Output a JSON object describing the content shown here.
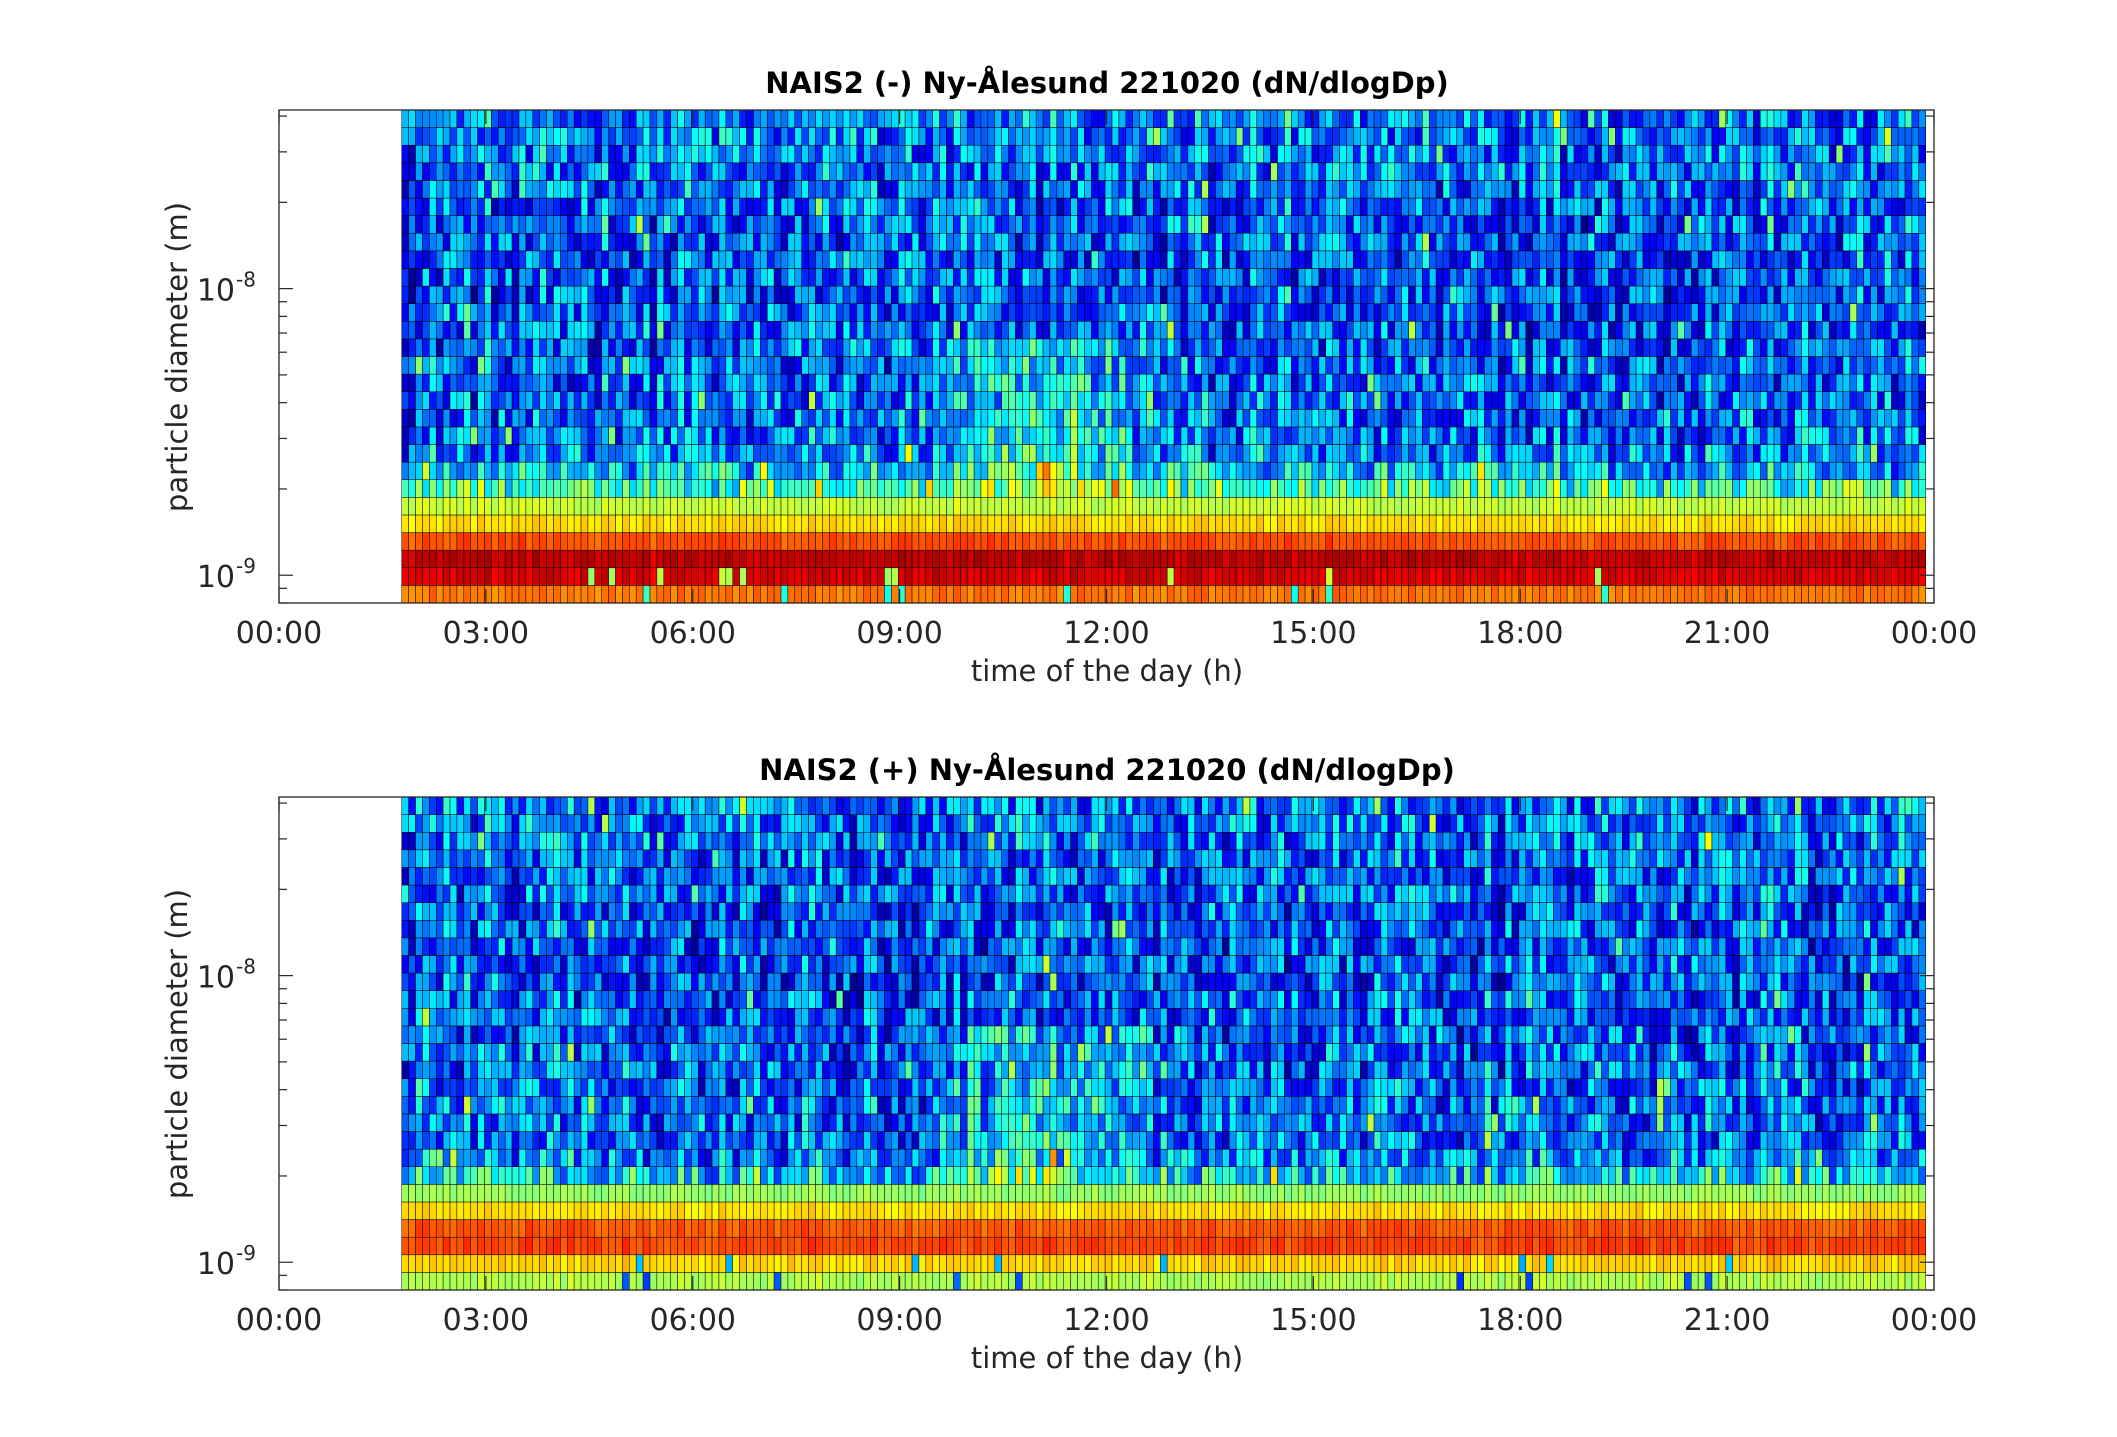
{
  "chart_data": [
    {
      "type": "heatmap",
      "title": "NAIS2 (-) Ny-Ålesund 221020 (dN/dlogDp)",
      "xlabel": "time of the day (h)",
      "ylabel": "particle diameter (m)",
      "xlim": [
        "00:00",
        "24:00"
      ],
      "x_ticks": [
        "00:00",
        "03:00",
        "06:00",
        "09:00",
        "12:00",
        "15:00",
        "18:00",
        "21:00",
        "00:00"
      ],
      "y_scale": "log",
      "ylim": [
        8e-10,
        4.2e-08
      ],
      "y_ticks": [
        {
          "base": "10",
          "exp": "-9",
          "value": 1e-09
        },
        {
          "base": "10",
          "exp": "-8",
          "value": 1e-08
        }
      ],
      "data_start_hour": 1.78,
      "data_end_hour": 23.9,
      "colormap": "jet",
      "profile_by_diameter": [
        {
          "dp": 9.1e-10,
          "level": 0.76
        },
        {
          "dp": 1e-09,
          "level": 0.93
        },
        {
          "dp": 1.1e-09,
          "level": 0.95
        },
        {
          "dp": 1.2e-09,
          "level": 0.91
        },
        {
          "dp": 1.35e-09,
          "level": 0.76
        },
        {
          "dp": 1.5e-09,
          "level": 0.66
        },
        {
          "dp": 1.7e-09,
          "level": 0.59
        },
        {
          "dp": 1.9e-09,
          "level": 0.5
        },
        {
          "dp": 2.2e-09,
          "level": 0.34
        },
        {
          "dp": 2.5e-09,
          "level": 0.28
        },
        {
          "dp": 3e-09,
          "level": 0.25
        },
        {
          "dp": 4e-09,
          "level": 0.23
        },
        {
          "dp": 6e-09,
          "level": 0.22
        },
        {
          "dp": 1e-08,
          "level": 0.21
        },
        {
          "dp": 1.6e-08,
          "level": 0.22
        },
        {
          "dp": 2.5e-08,
          "level": 0.24
        },
        {
          "dp": 4.2e-08,
          "level": 0.26
        }
      ],
      "event_hours": [
        9.5,
        13.8
      ],
      "event_peak_hour": 11.2
    },
    {
      "type": "heatmap",
      "title": "NAIS2 (+) Ny-Ålesund 221020 (dN/dlogDp)",
      "xlabel": "time of the day (h)",
      "ylabel": "particle diameter (m)",
      "xlim": [
        "00:00",
        "24:00"
      ],
      "x_ticks": [
        "00:00",
        "03:00",
        "06:00",
        "09:00",
        "12:00",
        "15:00",
        "18:00",
        "21:00",
        "00:00"
      ],
      "y_scale": "log",
      "ylim": [
        8e-10,
        4.2e-08
      ],
      "y_ticks": [
        {
          "base": "10",
          "exp": "-9",
          "value": 1e-09
        },
        {
          "base": "10",
          "exp": "-8",
          "value": 1e-08
        }
      ],
      "data_start_hour": 1.78,
      "data_end_hour": 23.9,
      "colormap": "jet",
      "profile_by_diameter": [
        {
          "dp": 9.1e-10,
          "level": 0.55
        },
        {
          "dp": 1e-09,
          "level": 0.68
        },
        {
          "dp": 1.1e-09,
          "level": 0.8
        },
        {
          "dp": 1.2e-09,
          "level": 0.82
        },
        {
          "dp": 1.35e-09,
          "level": 0.78
        },
        {
          "dp": 1.5e-09,
          "level": 0.66
        },
        {
          "dp": 1.7e-09,
          "level": 0.56
        },
        {
          "dp": 1.9e-09,
          "level": 0.4
        },
        {
          "dp": 2.2e-09,
          "level": 0.27
        },
        {
          "dp": 2.5e-09,
          "level": 0.25
        },
        {
          "dp": 3e-09,
          "level": 0.24
        },
        {
          "dp": 4e-09,
          "level": 0.23
        },
        {
          "dp": 6e-09,
          "level": 0.22
        },
        {
          "dp": 1e-08,
          "level": 0.21
        },
        {
          "dp": 1.6e-08,
          "level": 0.22
        },
        {
          "dp": 2.5e-08,
          "level": 0.24
        },
        {
          "dp": 4.2e-08,
          "level": 0.26
        }
      ],
      "event_hours": [
        9.5,
        13.8
      ],
      "event_peak_hour": 11.0
    }
  ]
}
